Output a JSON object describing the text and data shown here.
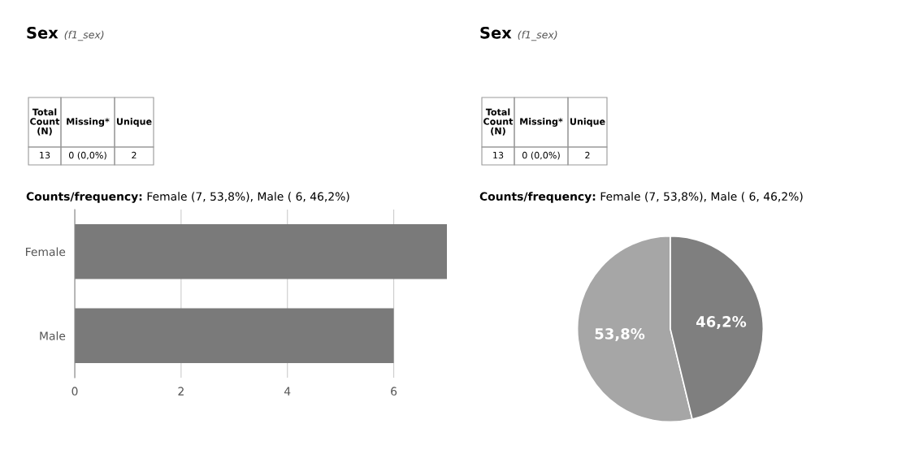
{
  "chart_data": [
    {
      "type": "bar",
      "orientation": "horizontal",
      "title": "Sex",
      "subtitle": "(f1_sex)",
      "categories": [
        "Female",
        "Male"
      ],
      "values": [
        7,
        6
      ],
      "color": "#7a7a7a",
      "xlim": [
        0,
        7
      ],
      "xticks": [
        0,
        2,
        4,
        6
      ],
      "grid": "x",
      "annotations": [
        "Total Count (N)",
        "Missing*",
        "Unique",
        "13",
        "0 (0,0%)",
        "2",
        "Counts/frequency: Female (7, 53,8%), Male ( 6, 46,2%)"
      ]
    },
    {
      "type": "pie",
      "title": "Sex",
      "subtitle": "(f1_sex)",
      "categories": [
        null,
        null
      ],
      "values": [
        53.8,
        46.2
      ],
      "colors": [
        "#a6a6a6",
        "#7f7f7f"
      ],
      "value_labels": [
        "53,8%",
        "46,2%"
      ],
      "annotations": [
        "Total Count (N)",
        "Missing*",
        "Unique",
        "13",
        "0 (0,0%)",
        "2",
        "Counts/frequency: Female (7, 53,8%), Male ( 6, 46,2%)"
      ]
    }
  ]
}
